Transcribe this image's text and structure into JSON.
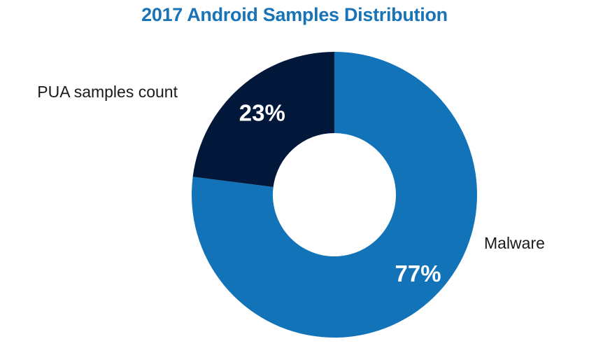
{
  "chart_data": {
    "type": "pie",
    "title": "2017 Android Samples Distribution",
    "donut": true,
    "slices": [
      {
        "name": "Malware",
        "value": 77,
        "label": "77%",
        "color": "#1373b9"
      },
      {
        "name": "PUA samples count",
        "value": 23,
        "label": "23%",
        "color": "#02183a"
      }
    ]
  },
  "colors": {
    "title": "#1873b7",
    "background": "#ffffff",
    "category_text": "#1a1a1a",
    "slice_text": "#ffffff"
  }
}
